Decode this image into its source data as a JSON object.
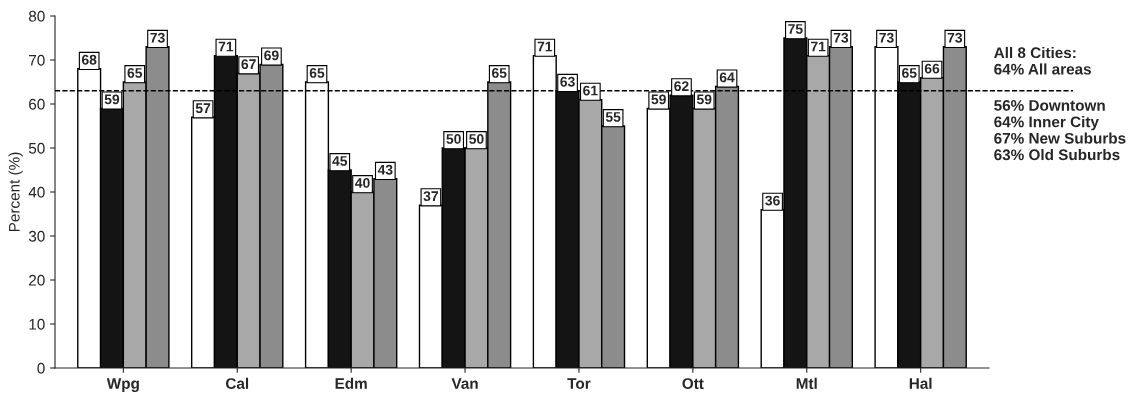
{
  "chart_data": {
    "type": "bar",
    "ylabel": "Percent (%)",
    "categories": [
      "Wpg",
      "Cal",
      "Edm",
      "Van",
      "Tor",
      "Ott",
      "Mtl",
      "Hal"
    ],
    "series": [
      {
        "color": "#ffffff",
        "values": [
          68,
          57,
          65,
          37,
          71,
          59,
          36,
          73
        ]
      },
      {
        "color": "#141414",
        "values": [
          59,
          71,
          45,
          50,
          63,
          62,
          75,
          65
        ]
      },
      {
        "color": "#a8a8a8",
        "values": [
          65,
          67,
          40,
          50,
          61,
          59,
          71,
          66
        ]
      },
      {
        "color": "#8c8c8c",
        "values": [
          73,
          69,
          43,
          65,
          55,
          64,
          73,
          73
        ]
      }
    ],
    "ylim": [
      0,
      80
    ],
    "yticks": [
      0,
      10,
      20,
      30,
      40,
      50,
      60,
      70,
      80
    ],
    "ref_lines": [
      {
        "axis": "y",
        "value": 63,
        "line_style": "dashed"
      }
    ],
    "annotations": [
      "All 8 Cities:\n64% All areas",
      "56% Downtown\n64% Inner City\n67% New Suburbs\n63% Old Suburbs"
    ],
    "data_labels": true,
    "grid": false
  }
}
